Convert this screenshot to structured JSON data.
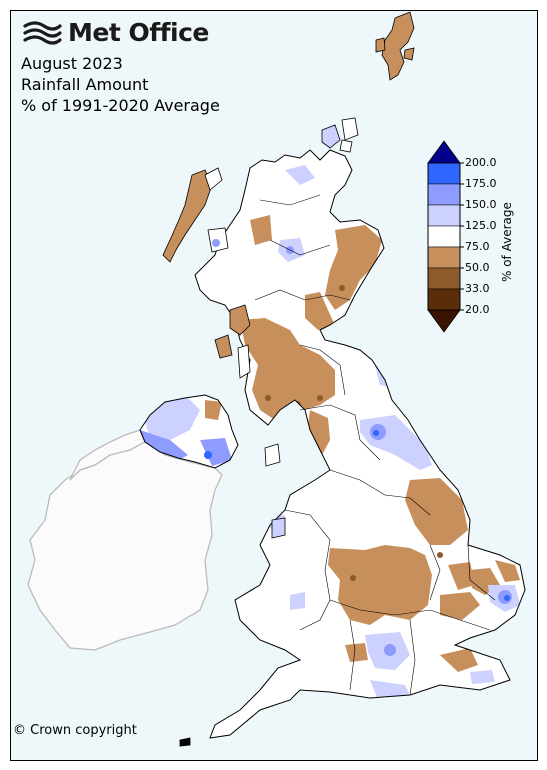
{
  "logo": {
    "text": "Met Office",
    "icon": "met-office-wave-logo"
  },
  "title": {
    "line1": "August 2023",
    "line2": "Rainfall Amount",
    "line3": "% of 1991-2020 Average"
  },
  "copyright": "© Crown copyright",
  "legend": {
    "title": "% of Average",
    "ticks": [
      "200.0",
      "175.0",
      "150.0",
      "125.0",
      "75.0",
      "50.0",
      "33.0",
      "20.0"
    ],
    "colors": {
      "over200": "#00008b",
      "175_200": "#2e66ff",
      "150_175": "#8f9cff",
      "125_150": "#cdd1ff",
      "75_125": "#ffffff",
      "50_75": "#c68f5c",
      "33_50": "#8c5a2b",
      "20_33": "#5a2e0a",
      "under20": "#3a1400"
    }
  },
  "map": {
    "regions": [
      "Scotland",
      "Northern Ireland",
      "Ireland",
      "England",
      "Wales",
      "Shetland",
      "Orkney"
    ],
    "colors": {
      "sea": "#eef7fa",
      "ireland_land": "#fbfbfb",
      "ireland_border": "#bbbbbb",
      "uk_border": "#000000"
    }
  }
}
